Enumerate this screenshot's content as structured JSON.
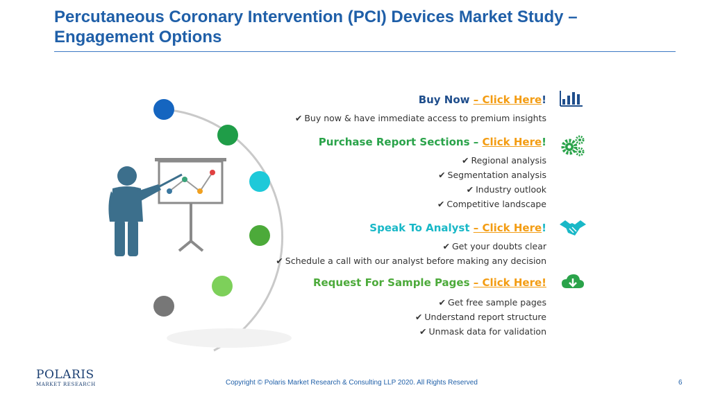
{
  "title": {
    "line1": "Percutaneous Coronary Intervention (PCI) Devices Market Study –",
    "line2": "Engagement Options"
  },
  "sections": {
    "buy": {
      "label": "Buy Now ",
      "link": "– Click Here",
      "suffix": "!",
      "color": "#1f4e8c",
      "icon": "bar-chart-icon",
      "bullets": [
        "Buy now & have immediate access to premium insights"
      ]
    },
    "purchase": {
      "label": "Purchase Report Sections – ",
      "link": "Click Here",
      "suffix": "!",
      "color": "#2aa34a",
      "icon": "gears-icon",
      "bullets": [
        "Regional analysis",
        "Segmentation analysis",
        "Industry outlook",
        "Competitive landscape"
      ]
    },
    "analyst": {
      "label": "Speak To Analyst ",
      "link": "– Click Here",
      "suffix": "!",
      "color": "#19b8c7",
      "icon": "handshake-icon",
      "bullets": [
        "Get your doubts clear",
        "Schedule a call with our analyst before making any decision"
      ]
    },
    "sample": {
      "label": "Request For Sample Pages ",
      "link": "– Click Here!",
      "suffix": "",
      "color": "#4caa3a",
      "icon": "cloud-download-icon",
      "bullets": [
        "Get free sample pages",
        "Understand report structure",
        "Unmask data for validation"
      ]
    }
  },
  "link_color": "#f39c12",
  "logo": {
    "name": "POLARIS",
    "sub": "MARKET RESEARCH"
  },
  "footer": "Copyright © Polaris Market Research & Consulting LLP 2020. All Rights Reserved",
  "page_number": "6"
}
